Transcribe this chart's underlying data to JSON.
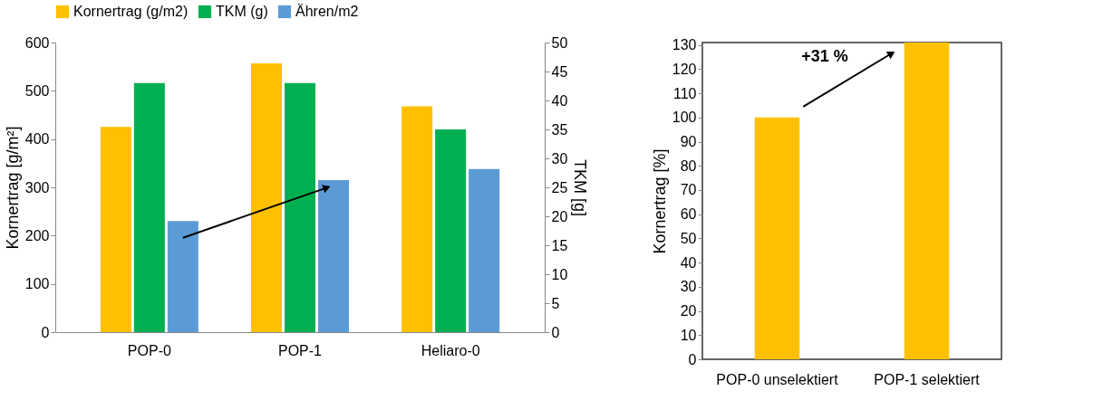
{
  "chart_data": [
    {
      "type": "bar",
      "categories": [
        "POP-0",
        "POP-1",
        "Heliaro-0"
      ],
      "ylabel": "Kornertrag [g/m²]",
      "y2label": "TKM [g]",
      "series": [
        {
          "name": "Kornertrag (g/m2)",
          "color": "#ffc000",
          "values": [
            425,
            557,
            468
          ]
        },
        {
          "name": "TKM (g)",
          "color": "#00b050",
          "values": [
            43,
            43,
            35
          ],
          "axis": "y2"
        },
        {
          "name": "Ähren/m2",
          "color": "#5b9bd5",
          "values": [
            230,
            315,
            338
          ]
        }
      ],
      "ylim": [
        0,
        600
      ],
      "yticks": [
        0,
        100,
        200,
        300,
        400,
        500,
        600
      ],
      "y2lim": [
        0,
        50
      ],
      "y2ticks": [
        0,
        5,
        10,
        15,
        20,
        25,
        30,
        35,
        40,
        45,
        50
      ],
      "grid": false,
      "legend": "top"
    },
    {
      "type": "bar",
      "categories": [
        "POP-0 unselektiert",
        "POP-1 selektiert"
      ],
      "ylabel": "Kornertrag [%]",
      "values": [
        100,
        131
      ],
      "color": "#ffc000",
      "ylim": [
        0,
        131
      ],
      "yticks": [
        0,
        10,
        20,
        30,
        40,
        50,
        60,
        70,
        80,
        90,
        100,
        110,
        120,
        130
      ],
      "annotations": [
        "+31 %"
      ],
      "grid": false
    }
  ]
}
